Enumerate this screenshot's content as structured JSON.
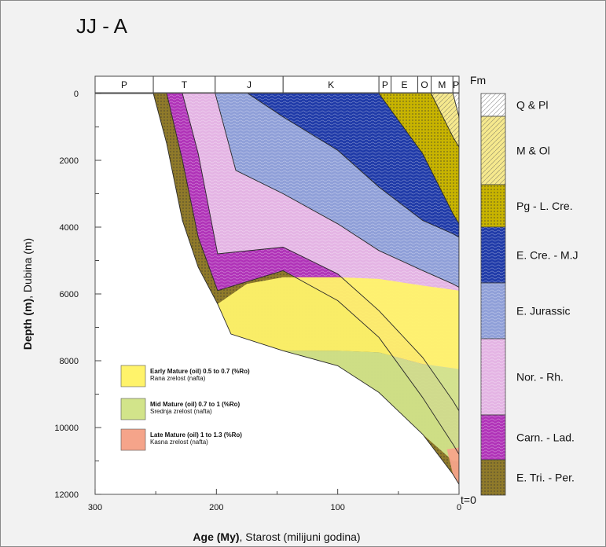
{
  "title": "JJ - A",
  "chart_data": {
    "type": "area",
    "title": "JJ - A",
    "xlabel_bold": "Age (My)",
    "xlabel_rest": ", Starost (milijuni godina)",
    "ylabel_bold": "Depth (m)",
    "ylabel_rest": ", Dubina (m)",
    "xlim": [
      300,
      0
    ],
    "ylim": [
      12000,
      0
    ],
    "x_ticks": [
      300,
      200,
      100,
      0
    ],
    "y_ticks": [
      0,
      2000,
      4000,
      6000,
      8000,
      10000,
      12000
    ],
    "periods": [
      {
        "label": "P",
        "start": 300,
        "end": 252
      },
      {
        "label": "T",
        "start": 252,
        "end": 201
      },
      {
        "label": "J",
        "start": 201,
        "end": 145
      },
      {
        "label": "K",
        "start": 145,
        "end": 66
      },
      {
        "label": "P",
        "start": 66,
        "end": 56
      },
      {
        "label": "E",
        "start": 56,
        "end": 34
      },
      {
        "label": "O",
        "start": 34,
        "end": 23
      },
      {
        "label": "M",
        "start": 23,
        "end": 5
      },
      {
        "label": "P",
        "start": 5,
        "end": 0
      }
    ],
    "formation_legend_title": "Fm",
    "formations": [
      {
        "label": "Q & Pl",
        "color": "#ffffff"
      },
      {
        "label": "M & Ol",
        "color": "#f6e98e"
      },
      {
        "label": "Pg - L. Cre.",
        "color": "#c8b400"
      },
      {
        "label": "E. Cre. - M.J",
        "color": "#1f3aa8"
      },
      {
        "label": "E. Jurassic",
        "color": "#8f9fd8"
      },
      {
        "label": "Nor. - Rh.",
        "color": "#e4b4e4"
      },
      {
        "label": "Carn. - Lad.",
        "color": "#b033b8"
      },
      {
        "label": "E. Tri. - Per.",
        "color": "#8f7a2a"
      }
    ],
    "present_label": "t=0",
    "maturity_legend": [
      {
        "label": "Early Mature (oil) 0.5 to 0.7 (%Ro)",
        "sublabel": "Rana zrelost (nafta)",
        "color": "#fff36a"
      },
      {
        "label": "Mid Mature (oil) 0.7 to 1 (%Ro)",
        "sublabel": "Srednja zrelost (nafta)",
        "color": "#d2e48a"
      },
      {
        "label": "Late Mature (oil) 1 to 1.3 (%Ro)",
        "sublabel": "Kasna zrelost (nafta)",
        "color": "#f5a48a"
      }
    ],
    "burial_curves": [
      {
        "name": "E. Tri. - Per.",
        "points": [
          [
            252,
            0
          ],
          [
            241,
            1500
          ],
          [
            228,
            3800
          ],
          [
            215,
            5200
          ],
          [
            199,
            6300
          ],
          [
            188,
            7200
          ],
          [
            145,
            7700
          ],
          [
            100,
            8150
          ],
          [
            66,
            8950
          ],
          [
            30,
            10200
          ],
          [
            5,
            11400
          ],
          [
            0,
            11700
          ]
        ]
      },
      {
        "name": "Carn. - Lad.",
        "points": [
          [
            241,
            0
          ],
          [
            228,
            2000
          ],
          [
            215,
            4300
          ],
          [
            199,
            5900
          ],
          [
            145,
            5300
          ],
          [
            100,
            6200
          ],
          [
            66,
            7300
          ],
          [
            30,
            9100
          ],
          [
            5,
            10500
          ],
          [
            0,
            10800
          ]
        ]
      },
      {
        "name": "Nor. - Rh.",
        "points": [
          [
            228,
            0
          ],
          [
            215,
            1800
          ],
          [
            199,
            4800
          ],
          [
            145,
            4600
          ],
          [
            100,
            5400
          ],
          [
            66,
            6500
          ],
          [
            30,
            7900
          ],
          [
            5,
            9200
          ],
          [
            0,
            9500
          ]
        ]
      },
      {
        "name": "E. Jurassic",
        "points": [
          [
            201,
            0
          ],
          [
            184,
            2300
          ],
          [
            145,
            3000
          ],
          [
            100,
            3900
          ],
          [
            66,
            4700
          ],
          [
            30,
            5300
          ],
          [
            5,
            5700
          ],
          [
            0,
            5800
          ]
        ]
      },
      {
        "name": "E. Cre. - M.J",
        "points": [
          [
            174,
            0
          ],
          [
            145,
            700
          ],
          [
            100,
            1700
          ],
          [
            66,
            2800
          ],
          [
            30,
            3800
          ],
          [
            5,
            4200
          ],
          [
            0,
            4300
          ]
        ]
      },
      {
        "name": "Pg - L. Cre.",
        "points": [
          [
            66,
            0
          ],
          [
            30,
            1800
          ],
          [
            5,
            3600
          ],
          [
            0,
            3900
          ]
        ]
      },
      {
        "name": "M & Ol",
        "points": [
          [
            23,
            0
          ],
          [
            5,
            1300
          ],
          [
            0,
            1600
          ]
        ]
      },
      {
        "name": "Q & Pl",
        "points": [
          [
            5,
            0
          ],
          [
            0,
            700
          ]
        ]
      }
    ],
    "maturity_zones": [
      {
        "name": "Early Mature (oil)",
        "points": [
          [
            199,
            6300
          ],
          [
            188,
            7200
          ],
          [
            145,
            7700
          ],
          [
            100,
            7700
          ],
          [
            66,
            7750
          ],
          [
            30,
            8100
          ],
          [
            0,
            8250
          ],
          [
            0,
            5900
          ],
          [
            30,
            5750
          ],
          [
            66,
            5550
          ],
          [
            100,
            5500
          ],
          [
            145,
            5500
          ],
          [
            175,
            5700
          ]
        ]
      },
      {
        "name": "Mid Mature (oil)",
        "points": [
          [
            145,
            7700
          ],
          [
            100,
            8150
          ],
          [
            66,
            8950
          ],
          [
            30,
            10200
          ],
          [
            5,
            11000
          ],
          [
            0,
            11000
          ],
          [
            0,
            8250
          ],
          [
            30,
            8100
          ],
          [
            66,
            7750
          ],
          [
            100,
            7700
          ]
        ]
      },
      {
        "name": "Late Mature (oil)",
        "points": [
          [
            10,
            10650
          ],
          [
            5,
            11400
          ],
          [
            0,
            11700
          ],
          [
            0,
            10600
          ]
        ]
      }
    ]
  }
}
